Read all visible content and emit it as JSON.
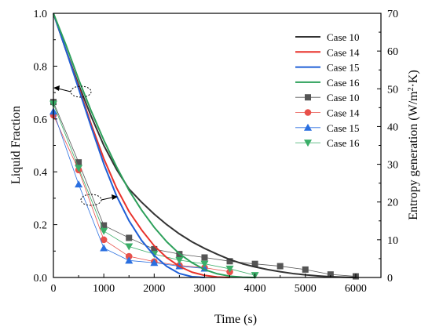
{
  "chart_data": {
    "type": "line",
    "xlabel": "Time (s)",
    "ylabel_left": "Liquid Fraction",
    "ylabel_right_prefix": "Entropy generation (W/m",
    "ylabel_right_sup": "2",
    "ylabel_right_suffix": "·K)",
    "xlim": [
      0,
      6500
    ],
    "ylim_left": [
      0,
      1.0
    ],
    "ylim_right": [
      0,
      70
    ],
    "x_ticks": [
      0,
      1000,
      2000,
      3000,
      4000,
      5000,
      6000
    ],
    "y_left_ticks": [
      "0.0",
      "0.2",
      "0.4",
      "0.6",
      "0.8",
      "1.0"
    ],
    "y_right_ticks": [
      "0",
      "10",
      "20",
      "30",
      "40",
      "50",
      "60",
      "70"
    ],
    "legend_position": "top-right",
    "liquid_fraction_series": [
      {
        "name": "Case 10",
        "color": "#333333",
        "x": [
          0,
          250,
          500,
          750,
          1000,
          1250,
          1500,
          1750,
          2000,
          2250,
          2500,
          2750,
          3000,
          3250,
          3500,
          3750,
          4000,
          4250,
          4500,
          4750,
          5000,
          5250,
          5500,
          5750,
          6000
        ],
        "y": [
          1.0,
          0.86,
          0.73,
          0.61,
          0.5,
          0.41,
          0.335,
          0.285,
          0.24,
          0.2,
          0.165,
          0.135,
          0.11,
          0.088,
          0.068,
          0.052,
          0.04,
          0.03,
          0.022,
          0.015,
          0.01,
          0.006,
          0.003,
          0.001,
          0.0
        ]
      },
      {
        "name": "Case 14",
        "color": "#e8322b",
        "x": [
          0,
          250,
          500,
          750,
          1000,
          1250,
          1500,
          1750,
          2000,
          2250,
          2500,
          2750,
          3000,
          3250,
          3500
        ],
        "y": [
          1.0,
          0.86,
          0.72,
          0.58,
          0.45,
          0.34,
          0.25,
          0.18,
          0.12,
          0.075,
          0.042,
          0.02,
          0.008,
          0.002,
          0.0
        ]
      },
      {
        "name": "Case 15",
        "color": "#1f5fd6",
        "x": [
          0,
          250,
          500,
          750,
          1000,
          1250,
          1500,
          1750,
          2000,
          2250,
          2500,
          2750,
          3000
        ],
        "y": [
          1.0,
          0.86,
          0.715,
          0.57,
          0.43,
          0.31,
          0.215,
          0.14,
          0.083,
          0.042,
          0.015,
          0.003,
          0.0
        ]
      },
      {
        "name": "Case 16",
        "color": "#2ca05a",
        "x": [
          0,
          250,
          500,
          750,
          1000,
          1250,
          1500,
          1750,
          2000,
          2250,
          2500,
          2750,
          3000,
          3250,
          3500,
          3750,
          4000
        ],
        "y": [
          1.0,
          0.88,
          0.75,
          0.63,
          0.52,
          0.42,
          0.33,
          0.255,
          0.19,
          0.135,
          0.09,
          0.056,
          0.03,
          0.014,
          0.005,
          0.001,
          0.0
        ]
      }
    ],
    "entropy_series": [
      {
        "name": "Case 10",
        "color": "#555555",
        "marker": "square",
        "x": [
          0,
          500,
          1000,
          1500,
          2000,
          2500,
          3000,
          3500,
          4000,
          4500,
          5000,
          5500,
          6000
        ],
        "y": [
          46.5,
          30.5,
          13.8,
          10.5,
          7.5,
          6.2,
          5.3,
          4.3,
          3.6,
          3.0,
          2.1,
          0.8,
          0.3
        ]
      },
      {
        "name": "Case 14",
        "color": "#e8504a",
        "marker": "circle",
        "x": [
          0,
          500,
          1000,
          1500,
          2000,
          2500,
          3000,
          3500
        ],
        "y": [
          43.0,
          28.5,
          10.0,
          5.6,
          4.2,
          3.2,
          2.6,
          1.5
        ]
      },
      {
        "name": "Case 15",
        "color": "#2a6fe0",
        "marker": "triangle-up",
        "x": [
          0,
          500,
          1000,
          1500,
          2000,
          2500,
          3000
        ],
        "y": [
          44.0,
          24.7,
          7.8,
          4.5,
          3.9,
          3.0,
          2.4
        ]
      },
      {
        "name": "Case 16",
        "color": "#3aae68",
        "marker": "triangle-down",
        "x": [
          0,
          500,
          1000,
          1500,
          2000,
          2500,
          3000,
          3500,
          4000
        ],
        "y": [
          46.0,
          29.0,
          12.3,
          8.2,
          6.2,
          4.6,
          3.6,
          2.3,
          0.6
        ]
      }
    ]
  }
}
